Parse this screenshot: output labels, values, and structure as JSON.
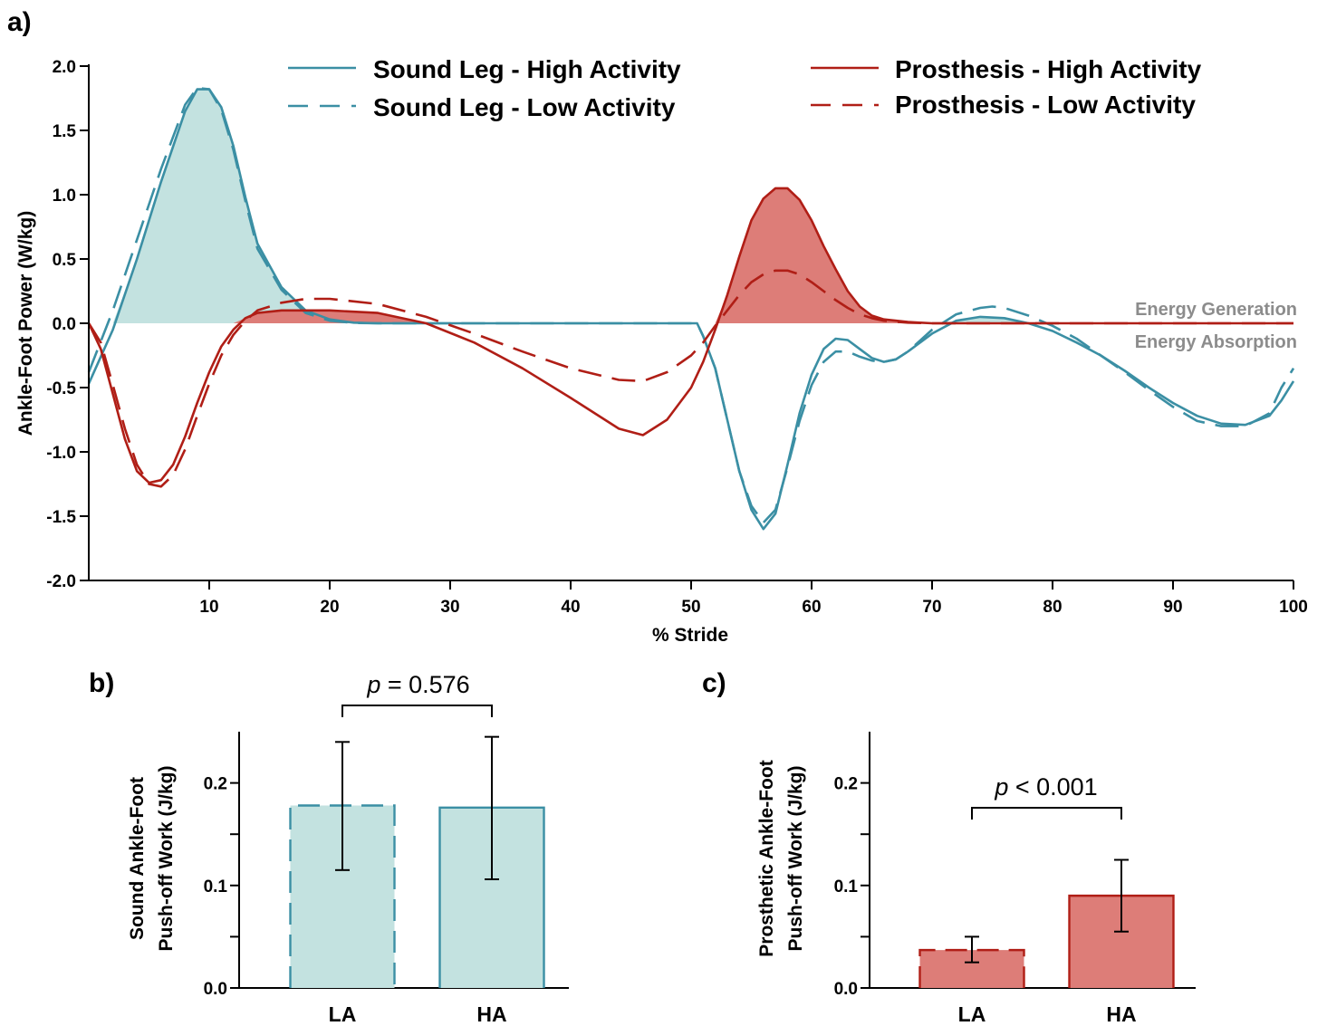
{
  "colors": {
    "sound": "#3b8fa4",
    "sound_fill": "#c3e2e0",
    "prosthesis": "#b01e16",
    "prosthesis_fill": "#dd7d78",
    "axis": "#000000",
    "region_text": "#8c8c8c"
  },
  "chart_data": [
    {
      "panel": "a)",
      "type": "line",
      "xlabel": "% Stride",
      "ylabel": "Ankle-Foot Power (W/kg)",
      "xlim": [
        0,
        100
      ],
      "ylim": [
        -2.0,
        2.0
      ],
      "xticks": [
        "10",
        "20",
        "30",
        "40",
        "50",
        "60",
        "70",
        "80",
        "90",
        "100"
      ],
      "yticks": [
        "2.0",
        "1.5",
        "1.0",
        "0.5",
        "0.0",
        "-0.5",
        "-1.0",
        "-1.5",
        "-2.0"
      ],
      "region_labels": {
        "generation": "Energy Generation",
        "absorption": "Energy Absorption"
      },
      "grid": false,
      "legend_position": "top",
      "series": [
        {
          "name": "Sound Leg - High Activity",
          "color": "#3b8fa4",
          "dash": "solid",
          "fill": true,
          "points": [
            [
              0,
              -0.47
            ],
            [
              2,
              -0.05
            ],
            [
              4,
              0.5
            ],
            [
              6,
              1.1
            ],
            [
              8,
              1.65
            ],
            [
              9,
              1.82
            ],
            [
              10,
              1.82
            ],
            [
              11,
              1.68
            ],
            [
              12,
              1.38
            ],
            [
              13,
              0.98
            ],
            [
              14,
              0.62
            ],
            [
              16,
              0.28
            ],
            [
              18,
              0.1
            ],
            [
              20,
              0.03
            ],
            [
              22,
              0.005
            ],
            [
              24,
              0
            ],
            [
              50.5,
              0
            ],
            [
              51,
              -0.1
            ],
            [
              52,
              -0.35
            ],
            [
              53,
              -0.75
            ],
            [
              54,
              -1.15
            ],
            [
              55,
              -1.45
            ],
            [
              56,
              -1.6
            ],
            [
              57,
              -1.48
            ],
            [
              58,
              -1.1
            ],
            [
              59,
              -0.7
            ],
            [
              60,
              -0.4
            ],
            [
              61,
              -0.2
            ],
            [
              62,
              -0.12
            ],
            [
              63,
              -0.13
            ],
            [
              64,
              -0.2
            ],
            [
              65,
              -0.27
            ],
            [
              66,
              -0.3
            ],
            [
              67,
              -0.28
            ],
            [
              68,
              -0.22
            ],
            [
              70,
              -0.08
            ],
            [
              72,
              0.02
            ],
            [
              74,
              0.05
            ],
            [
              76,
              0.04
            ],
            [
              78,
              0
            ],
            [
              80,
              -0.06
            ],
            [
              82,
              -0.15
            ],
            [
              84,
              -0.25
            ],
            [
              86,
              -0.37
            ],
            [
              88,
              -0.5
            ],
            [
              90,
              -0.62
            ],
            [
              92,
              -0.72
            ],
            [
              94,
              -0.78
            ],
            [
              96,
              -0.79
            ],
            [
              98,
              -0.72
            ],
            [
              99,
              -0.6
            ],
            [
              100,
              -0.45
            ]
          ]
        },
        {
          "name": "Sound Leg - Low Activity",
          "color": "#3b8fa4",
          "dash": "dashed",
          "fill": false,
          "points": [
            [
              0,
              -0.38
            ],
            [
              2,
              0.1
            ],
            [
              4,
              0.65
            ],
            [
              6,
              1.2
            ],
            [
              8,
              1.7
            ],
            [
              9,
              1.83
            ],
            [
              10,
              1.82
            ],
            [
              11,
              1.66
            ],
            [
              12,
              1.35
            ],
            [
              13,
              0.95
            ],
            [
              14,
              0.58
            ],
            [
              16,
              0.26
            ],
            [
              18,
              0.08
            ],
            [
              20,
              0.02
            ],
            [
              22,
              0.003
            ],
            [
              24,
              0
            ],
            [
              50.5,
              0
            ],
            [
              51,
              -0.1
            ],
            [
              52,
              -0.35
            ],
            [
              53,
              -0.75
            ],
            [
              54,
              -1.15
            ],
            [
              55,
              -1.42
            ],
            [
              56,
              -1.55
            ],
            [
              57,
              -1.45
            ],
            [
              58,
              -1.12
            ],
            [
              59,
              -0.76
            ],
            [
              60,
              -0.48
            ],
            [
              61,
              -0.3
            ],
            [
              62,
              -0.22
            ],
            [
              63,
              -0.22
            ],
            [
              64,
              -0.26
            ],
            [
              65,
              -0.29
            ],
            [
              66,
              -0.3
            ],
            [
              67,
              -0.28
            ],
            [
              68,
              -0.22
            ],
            [
              70,
              -0.05
            ],
            [
              72,
              0.07
            ],
            [
              74,
              0.12
            ],
            [
              75,
              0.13
            ],
            [
              76,
              0.12
            ],
            [
              78,
              0.06
            ],
            [
              80,
              -0.02
            ],
            [
              82,
              -0.12
            ],
            [
              84,
              -0.25
            ],
            [
              86,
              -0.38
            ],
            [
              88,
              -0.52
            ],
            [
              90,
              -0.65
            ],
            [
              92,
              -0.76
            ],
            [
              94,
              -0.8
            ],
            [
              96,
              -0.8
            ],
            [
              98,
              -0.7
            ],
            [
              99,
              -0.5
            ],
            [
              100,
              -0.35
            ]
          ]
        },
        {
          "name": "Prosthesis - High Activity",
          "color": "#b01e16",
          "dash": "solid",
          "fill": true,
          "points": [
            [
              0,
              0
            ],
            [
              1,
              -0.2
            ],
            [
              2,
              -0.55
            ],
            [
              3,
              -0.9
            ],
            [
              4,
              -1.15
            ],
            [
              5,
              -1.24
            ],
            [
              6,
              -1.22
            ],
            [
              7,
              -1.1
            ],
            [
              8,
              -0.88
            ],
            [
              9,
              -0.62
            ],
            [
              10,
              -0.38
            ],
            [
              11,
              -0.18
            ],
            [
              12,
              -0.05
            ],
            [
              13,
              0.04
            ],
            [
              14,
              0.08
            ],
            [
              16,
              0.1
            ],
            [
              20,
              0.1
            ],
            [
              24,
              0.08
            ],
            [
              28,
              0.0
            ],
            [
              32,
              -0.15
            ],
            [
              36,
              -0.35
            ],
            [
              40,
              -0.58
            ],
            [
              44,
              -0.82
            ],
            [
              46,
              -0.87
            ],
            [
              48,
              -0.75
            ],
            [
              50,
              -0.5
            ],
            [
              51,
              -0.3
            ],
            [
              52,
              -0.05
            ],
            [
              53,
              0.22
            ],
            [
              54,
              0.52
            ],
            [
              55,
              0.8
            ],
            [
              56,
              0.97
            ],
            [
              57,
              1.05
            ],
            [
              58,
              1.05
            ],
            [
              59,
              0.96
            ],
            [
              60,
              0.8
            ],
            [
              61,
              0.6
            ],
            [
              62,
              0.42
            ],
            [
              63,
              0.25
            ],
            [
              64,
              0.13
            ],
            [
              65,
              0.06
            ],
            [
              66,
              0.03
            ],
            [
              68,
              0.01
            ],
            [
              70,
              0
            ],
            [
              100,
              0
            ]
          ]
        },
        {
          "name": "Prosthesis - Low Activity",
          "color": "#b01e16",
          "dash": "dashed",
          "fill": false,
          "points": [
            [
              0,
              0
            ],
            [
              1,
              -0.15
            ],
            [
              2,
              -0.48
            ],
            [
              3,
              -0.82
            ],
            [
              4,
              -1.1
            ],
            [
              5,
              -1.25
            ],
            [
              6,
              -1.27
            ],
            [
              7,
              -1.18
            ],
            [
              8,
              -0.98
            ],
            [
              9,
              -0.72
            ],
            [
              10,
              -0.47
            ],
            [
              11,
              -0.25
            ],
            [
              12,
              -0.09
            ],
            [
              13,
              0.02
            ],
            [
              14,
              0.1
            ],
            [
              16,
              0.16
            ],
            [
              18,
              0.19
            ],
            [
              20,
              0.19
            ],
            [
              24,
              0.15
            ],
            [
              28,
              0.05
            ],
            [
              32,
              -0.08
            ],
            [
              36,
              -0.22
            ],
            [
              40,
              -0.35
            ],
            [
              44,
              -0.44
            ],
            [
              46,
              -0.45
            ],
            [
              48,
              -0.38
            ],
            [
              50,
              -0.25
            ],
            [
              51,
              -0.15
            ],
            [
              52,
              -0.02
            ],
            [
              53,
              0.1
            ],
            [
              54,
              0.22
            ],
            [
              55,
              0.32
            ],
            [
              56,
              0.38
            ],
            [
              57,
              0.41
            ],
            [
              58,
              0.41
            ],
            [
              59,
              0.38
            ],
            [
              60,
              0.32
            ],
            [
              61,
              0.25
            ],
            [
              62,
              0.18
            ],
            [
              63,
              0.12
            ],
            [
              64,
              0.07
            ],
            [
              65,
              0.04
            ],
            [
              66,
              0.02
            ],
            [
              68,
              0.005
            ],
            [
              70,
              0
            ],
            [
              100,
              0
            ]
          ]
        }
      ]
    },
    {
      "panel": "b)",
      "type": "bar",
      "ylabel_lines": [
        "Sound Ankle-Foot",
        "Push-off Work (J/kg)"
      ],
      "ylim": [
        0,
        0.25
      ],
      "yticks": [
        "0.0",
        "0.1",
        "0.2"
      ],
      "categories": [
        "LA",
        "HA"
      ],
      "values": [
        0.178,
        0.176
      ],
      "error_low": [
        0.115,
        0.106
      ],
      "error_high": [
        0.24,
        0.245
      ],
      "bar_styles": [
        "dashed",
        "solid"
      ],
      "color": "#3b8fa4",
      "fill": "#c3e2e0",
      "p_prefix": "p",
      "p_value": " = 0.576"
    },
    {
      "panel": "c)",
      "type": "bar",
      "ylabel_lines": [
        "Prosthetic Ankle-Foot",
        "Push-off Work (J/kg)"
      ],
      "ylim": [
        0,
        0.25
      ],
      "yticks": [
        "0.0",
        "0.1",
        "0.2"
      ],
      "categories": [
        "LA",
        "HA"
      ],
      "values": [
        0.037,
        0.09
      ],
      "error_low": [
        0.025,
        0.055
      ],
      "error_high": [
        0.05,
        0.125
      ],
      "bar_styles": [
        "dashed",
        "solid"
      ],
      "color": "#b01e16",
      "fill": "#dd7d78",
      "p_prefix": "p",
      "p_value": " < 0.001"
    }
  ]
}
